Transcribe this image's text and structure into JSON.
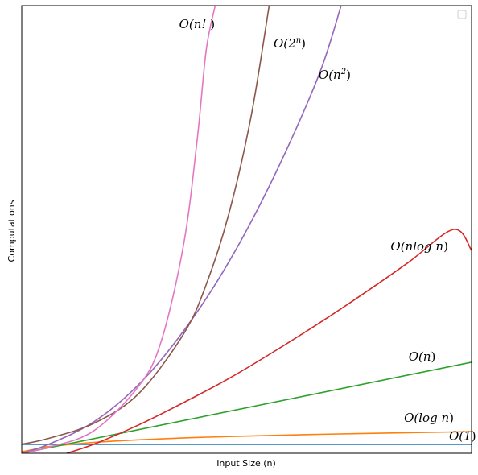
{
  "chart_data": {
    "type": "line",
    "title": "",
    "xlabel": "Input Size (n)",
    "ylabel": "Computations",
    "xlim": [
      0.4,
      10.4
    ],
    "ylim": [
      0,
      30
    ],
    "x_ticks_visible": false,
    "y_ticks_visible": false,
    "grid": false,
    "legend": {
      "placement": "top-right",
      "entries": []
    },
    "series": [
      {
        "label": "O(1)",
        "color": "#1f77b4",
        "x": [
          0.4,
          10.4
        ],
        "y": [
          0.6,
          0.6
        ]
      },
      {
        "label": "O(log n)",
        "color": "#ff7f0e",
        "x": [
          0.4,
          0.6,
          0.8,
          1.0,
          1.5,
          2.0,
          3.0,
          4.0,
          5.0,
          6.0,
          7.0,
          8.0,
          9.0,
          10.0,
          10.4
        ],
        "y": [
          0.1,
          0.22,
          0.35,
          0.45,
          0.6,
          0.73,
          0.9,
          1.03,
          1.12,
          1.2,
          1.27,
          1.33,
          1.38,
          1.43,
          1.45
        ]
      },
      {
        "label": "O(n)",
        "color": "#2ca02c",
        "x": [
          0.4,
          10.4
        ],
        "y": [
          0.0,
          6.1
        ]
      },
      {
        "label": "O(n log n)",
        "color": "#d62728",
        "x": [
          1.4,
          2.0,
          3.0,
          4.0,
          5.0,
          6.0,
          7.0,
          8.0,
          9.0,
          10.0,
          10.4
        ],
        "y": [
          0.0,
          0.6,
          1.9,
          3.4,
          5.0,
          6.8,
          8.7,
          10.7,
          12.8,
          15.0,
          13.6
        ]
      },
      {
        "label": "O(n^2)",
        "color": "#9467bd",
        "x": [
          0.4,
          1.0,
          2.0,
          3.0,
          4.0,
          5.0,
          6.0,
          7.0,
          7.5
        ],
        "y": [
          0.0,
          0.6,
          2.1,
          4.6,
          8.2,
          12.8,
          18.5,
          25.3,
          30.0
        ]
      },
      {
        "label": "O(2^n)",
        "color": "#8c564b",
        "x": [
          0.4,
          1.0,
          2.0,
          3.0,
          4.0,
          4.5,
          5.0,
          5.5,
          5.9
        ],
        "y": [
          0.6,
          1.0,
          2.0,
          4.0,
          8.0,
          11.3,
          16.0,
          22.6,
          30.0
        ]
      },
      {
        "label": "O(n!)",
        "color": "#e377c2",
        "x": [
          0.4,
          1.0,
          2.0,
          3.0,
          3.5,
          4.0,
          4.3,
          4.5,
          4.7
        ],
        "y": [
          0.0,
          0.4,
          1.5,
          4.5,
          7.5,
          14.0,
          21.0,
          27.0,
          30.0
        ]
      }
    ],
    "annotations": [
      {
        "text_main": "O(n!",
        "text_tail": " )",
        "sup": "",
        "x": 3.9,
        "y": 28.5
      },
      {
        "text_main": "O(2",
        "text_tail": ")",
        "sup": "n",
        "x": 6.0,
        "y": 27.2
      },
      {
        "text_main": "O(n",
        "text_tail": ")",
        "sup": "2",
        "x": 7.0,
        "y": 25.1
      },
      {
        "text_main": "O(nlog n",
        "text_tail": ")",
        "sup": "",
        "x": 8.6,
        "y": 13.6
      },
      {
        "text_main": "O(n",
        "text_tail": ")",
        "sup": "",
        "x": 9.0,
        "y": 6.2
      },
      {
        "text_main": "O(log n",
        "text_tail": ")",
        "sup": "",
        "x": 8.9,
        "y": 2.1
      },
      {
        "text_main": "O(1",
        "text_tail": ")",
        "sup": "",
        "x": 9.9,
        "y": 0.9
      }
    ]
  }
}
